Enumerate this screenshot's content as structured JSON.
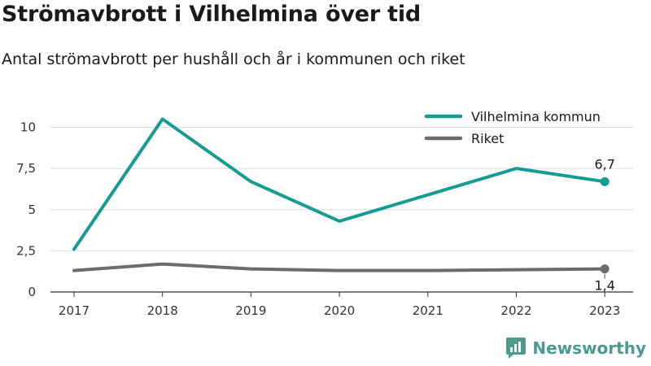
{
  "title": "Strömavbrott i Vilhelmina över tid",
  "subtitle": "Antal strömavbrott per hushåll och år i kommunen och riket",
  "brand": {
    "name": "Newsworthy",
    "icon": "newsworthy-logo-icon"
  },
  "chart_data": {
    "type": "line",
    "categories": [
      "2017",
      "2018",
      "2019",
      "2020",
      "2021",
      "2022",
      "2023"
    ],
    "series": [
      {
        "name": "Vilhelmina kommun",
        "color": "#169c92",
        "values": [
          2.6,
          10.5,
          6.7,
          4.3,
          5.9,
          7.5,
          6.7
        ]
      },
      {
        "name": "Riket",
        "color": "#6b6b70",
        "values": [
          1.3,
          1.7,
          1.4,
          1.3,
          1.3,
          1.35,
          1.4
        ]
      }
    ],
    "yticks": [
      "0",
      "2,5",
      "5",
      "7,5",
      "10"
    ],
    "ylim": [
      0,
      11
    ],
    "grid": true,
    "legend": "top-right",
    "end_labels": [
      "6,7",
      "1,4"
    ],
    "xlabel": "",
    "ylabel": ""
  }
}
